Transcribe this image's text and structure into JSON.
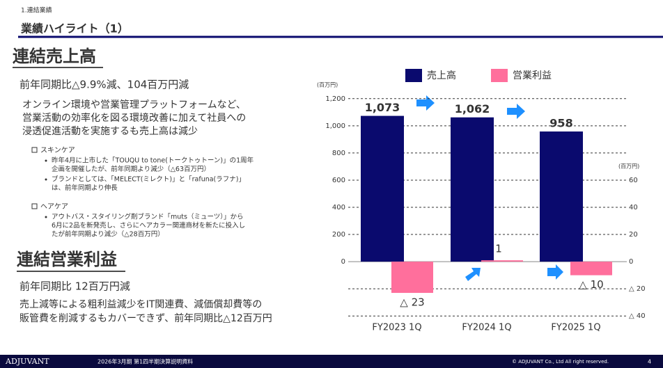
{
  "header": {
    "section": "1.連結業績",
    "title": "業績ハイライト（1）"
  },
  "sales": {
    "heading": "連結売上高",
    "summary": "前年同期比△9.9%減、104百万円減",
    "body": [
      "オンライン環境や営業管理プラットフォームなど、",
      "営業活動の効率化を図る環境改善に加えて社員への",
      "浸透促進活動を実施するも売上高は減少"
    ],
    "groups": [
      {
        "label": "スキンケア",
        "bullets": [
          [
            "昨年4月に上市した「TOUQU to tone(トークトゥトーン)」の1周年",
            "企画を開催したが、前年同期より減少（△63百万円）"
          ],
          [
            "ブランドとしては、「MELECT(ミレクト)」と「rafuna(ラフナ)」",
            "は、前年同期より伸長"
          ]
        ]
      },
      {
        "label": "ヘアケア",
        "bullets": [
          [
            "アウトバス・スタイリング剤ブランド「muts（ミューツ）」から",
            "6月に2品を新発売し、さらにヘアカラー関連商材を新たに投入し",
            "たが前年同期より減少（△28百万円）"
          ]
        ]
      }
    ]
  },
  "profit": {
    "heading": "連結営業利益",
    "summary": "前年同期比 12百万円減",
    "body": [
      "売上減等による粗利益減少をIT関連費、減価償却費等の",
      "販管費を削減するもカバーできず、前年同期比△12百万円"
    ]
  },
  "chart_data": {
    "type": "bar",
    "y_unit": "(百万円)",
    "y2_unit": "(百万円)",
    "categories": [
      "FY2023 1Q",
      "FY2024 1Q",
      "FY2025 1Q"
    ],
    "series": [
      {
        "name": "売上高",
        "color": "#0a0a6e",
        "values": [
          1073,
          1062,
          958
        ],
        "value_labels": [
          "1,073",
          "1,062",
          "958"
        ]
      },
      {
        "name": "営業利益",
        "color": "#ff6f9c",
        "axis": "y2",
        "values": [
          -23,
          1,
          -10
        ],
        "value_labels": [
          "△ 23",
          "1",
          "△ 10"
        ]
      }
    ],
    "ylim": [
      -450,
      1250
    ],
    "yticks": [
      0,
      200,
      400,
      600,
      800,
      {
        "value": 1000,
        "label": "1,000"
      },
      {
        "value": 1200,
        "label": "1,200"
      }
    ],
    "y2lim": [
      -45,
      125
    ],
    "y2ticks": [
      {
        "value": -40,
        "label": "△ 40"
      },
      {
        "value": -20,
        "label": "△ 20"
      },
      0,
      20,
      40,
      60
    ],
    "grid": true
  },
  "footer": {
    "brand": "ADJUVANT",
    "doc": "2026年3月期 第1四半期決算説明資料",
    "copyright": "© ADJUVANT Co., Ltd All right reserved.",
    "page": "4"
  }
}
